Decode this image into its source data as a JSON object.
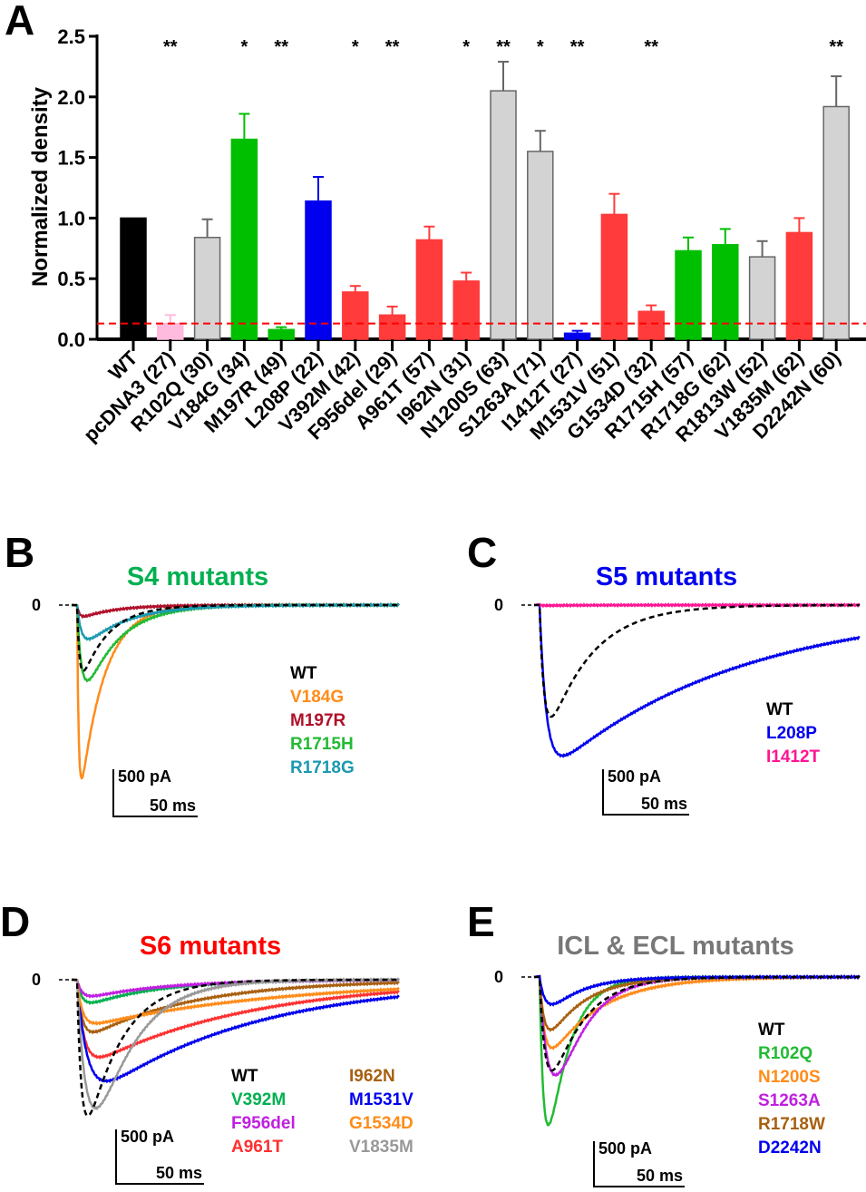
{
  "chart_data": [
    {
      "panel": "A",
      "type": "bar",
      "ylabel": "Normalized density",
      "ylim": [
        0,
        2.5
      ],
      "yticks": [
        "0.0",
        "0.5",
        "1.0",
        "1.5",
        "2.0",
        "2.5"
      ],
      "reference_line": 0.13,
      "categories": [
        "WT",
        "pcDNA3 (27)",
        "R102Q (30)",
        "V184G (34)",
        "M197R (49)",
        "L208P (22)",
        "V392M (42)",
        "F956del (29)",
        "A961T (57)",
        "I962N (31)",
        "N1200S (63)",
        "S1263A (71)",
        "I1412T (27)",
        "M1531V (51)",
        "G1534D (32)",
        "R1715H (57)",
        "R1718G (62)",
        "R1813W (52)",
        "V1835M (62)",
        "D2242N (60)"
      ],
      "values": [
        1.0,
        0.13,
        0.84,
        1.65,
        0.08,
        1.14,
        0.39,
        0.2,
        0.82,
        0.48,
        2.05,
        1.55,
        0.05,
        1.03,
        0.23,
        0.73,
        0.78,
        0.68,
        0.88,
        1.92
      ],
      "errors": [
        0,
        0.07,
        0.15,
        0.21,
        0.02,
        0.2,
        0.05,
        0.07,
        0.11,
        0.07,
        0.24,
        0.17,
        0.02,
        0.17,
        0.05,
        0.11,
        0.13,
        0.13,
        0.12,
        0.25
      ],
      "significance": [
        "",
        "**",
        "",
        "*",
        "**",
        "",
        "*",
        "**",
        "",
        "*",
        "**",
        "*",
        "**",
        "",
        "**",
        "",
        "",
        "",
        "",
        "**"
      ],
      "colors": [
        "#000000",
        "#ffbbdd",
        "#d3d3d3",
        "#00bf00",
        "#00bf00",
        "#0000ee",
        "#ff3b3b",
        "#ff3b3b",
        "#ff3b3b",
        "#ff3b3b",
        "#d3d3d3",
        "#d3d3d3",
        "#0000ee",
        "#ff3b3b",
        "#ff3b3b",
        "#00bf00",
        "#00bf00",
        "#d3d3d3",
        "#ff3b3b",
        "#d3d3d3"
      ]
    },
    {
      "panel": "B",
      "type": "line",
      "title": "S4 mutants",
      "title_color": "#00b050",
      "zero_label": "0",
      "scale_y": "500 pA",
      "scale_x": "50 ms",
      "series": [
        {
          "name": "WT",
          "color": "#000000",
          "dashed": true,
          "peak_pA": 700,
          "rise_ms": 1.5,
          "decay_ms": 16
        },
        {
          "name": "V184G",
          "color": "#ff8c1a",
          "peak_pA": 1840,
          "rise_ms": 1.0,
          "decay_ms": 14
        },
        {
          "name": "M197R",
          "color": "#b0102a",
          "peak_pA": 120,
          "rise_ms": 1.5,
          "decay_ms": 20
        },
        {
          "name": "R1715H",
          "color": "#22bb33",
          "peak_pA": 800,
          "rise_ms": 3,
          "decay_ms": 20
        },
        {
          "name": "R1718G",
          "color": "#1a9ab0",
          "peak_pA": 360,
          "rise_ms": 3,
          "decay_ms": 25
        }
      ]
    },
    {
      "panel": "C",
      "type": "line",
      "title": "S5 mutants",
      "title_color": "#0000ee",
      "zero_label": "0",
      "scale_y": "500 pA",
      "scale_x": "50 ms",
      "series": [
        {
          "name": "WT",
          "color": "#000000",
          "dashed": true,
          "peak_pA": 1230,
          "rise_ms": 3,
          "decay_ms": 25
        },
        {
          "name": "L208P",
          "color": "#0000ee",
          "peak_pA": 1660,
          "rise_ms": 4,
          "decay_ms": 110
        },
        {
          "name": "I1412T",
          "color": "#ff1493",
          "peak_pA": 5,
          "rise_ms": 2,
          "decay_ms": 20
        }
      ]
    },
    {
      "panel": "D",
      "type": "line",
      "title": "S6 mutants",
      "title_color": "#ff0000",
      "zero_label": "0",
      "scale_y": "500 pA",
      "scale_x": "50 ms",
      "series": [
        {
          "name": "WT",
          "color": "#000000",
          "dashed": true,
          "peak_pA": 1250,
          "rise_ms": 3,
          "decay_ms": 20
        },
        {
          "name": "V392M",
          "color": "#00b050",
          "peak_pA": 210,
          "rise_ms": 3,
          "decay_ms": 40
        },
        {
          "name": "F956del",
          "color": "#c020e0",
          "peak_pA": 150,
          "rise_ms": 3,
          "decay_ms": 45
        },
        {
          "name": "A961T",
          "color": "#ff3030",
          "peak_pA": 710,
          "rise_ms": 4,
          "decay_ms": 90
        },
        {
          "name": "I962N",
          "color": "#a86010",
          "peak_pA": 480,
          "rise_ms": 3,
          "decay_ms": 60
        },
        {
          "name": "M1531V",
          "color": "#0000ee",
          "peak_pA": 930,
          "rise_ms": 6,
          "decay_ms": 90
        },
        {
          "name": "G1534D",
          "color": "#ff8c1a",
          "peak_pA": 400,
          "rise_ms": 3,
          "decay_ms": 110
        },
        {
          "name": "V1835M",
          "color": "#999999",
          "peak_pA": 1180,
          "rise_ms": 8,
          "decay_ms": 22
        }
      ]
    },
    {
      "panel": "E",
      "type": "line",
      "title": "ICL & ECL mutants",
      "title_color": "#777777",
      "zero_label": "0",
      "scale_y": "500 pA",
      "scale_x": "50 ms",
      "series": [
        {
          "name": "WT",
          "color": "#000000",
          "dashed": true,
          "peak_pA": 1030,
          "rise_ms": 4,
          "decay_ms": 18
        },
        {
          "name": "R102Q",
          "color": "#22bb33",
          "peak_pA": 1630,
          "rise_ms": 3,
          "decay_ms": 12
        },
        {
          "name": "N1200S",
          "color": "#ff8c1a",
          "peak_pA": 780,
          "rise_ms": 3,
          "decay_ms": 28
        },
        {
          "name": "S1263A",
          "color": "#c020e0",
          "peak_pA": 1080,
          "rise_ms": 8,
          "decay_ms": 16
        },
        {
          "name": "R1718W",
          "color": "#a86010",
          "peak_pA": 580,
          "rise_ms": 3,
          "decay_ms": 20
        },
        {
          "name": "D2242N",
          "color": "#0000ee",
          "peak_pA": 300,
          "rise_ms": 4,
          "decay_ms": 18
        }
      ]
    }
  ],
  "panel_letters": [
    "A",
    "B",
    "C",
    "D",
    "E"
  ]
}
